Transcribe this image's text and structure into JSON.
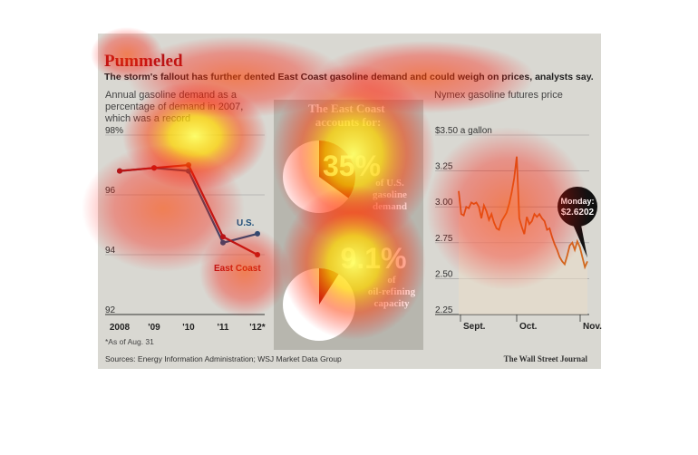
{
  "header": {
    "title": "Pummeled",
    "subtitle": "The storm's fallout has further dented East Coast gasoline demand and could weigh on prices, analysts say."
  },
  "footer": {
    "sources": "Sources: Energy Information Administration; WSJ Market Data Group",
    "credit": "The Wall Street Journal"
  },
  "colors": {
    "us": "#1f4f7a",
    "east_coast": "#a8161a",
    "futures": "#d2691e",
    "panel": "#b7b6ae",
    "pie_base": "#ffffff"
  },
  "chart_data": [
    {
      "type": "line",
      "title": "Annual gasoline demand as a percentage of demand in 2007, which was a record",
      "x": [
        "2008",
        "'09",
        "'10",
        "'11",
        "'12*"
      ],
      "ylim": [
        92,
        98
      ],
      "yticks": [
        "98%",
        "96",
        "94",
        "92"
      ],
      "series": [
        {
          "name": "U.S.",
          "values": [
            96.8,
            96.9,
            96.8,
            94.4,
            94.7
          ]
        },
        {
          "name": "East Coast",
          "values": [
            96.8,
            96.9,
            97.0,
            94.6,
            94.0
          ]
        }
      ],
      "footnote": "*As of Aug. 31",
      "grid": true
    },
    {
      "type": "pie",
      "title": "The East Coast accounts for:",
      "slices": [
        {
          "value_label": "35%",
          "caption": "of U.S. gasoline demand",
          "value": 35
        },
        {
          "value_label": "9.1%",
          "caption": "of oil-refining capacity",
          "value": 9.1
        }
      ]
    },
    {
      "type": "line",
      "title": "Nymex gasoline futures price",
      "yticks": [
        "$3.50 a gallon",
        "3.25",
        "3.00",
        "2.75",
        "2.50",
        "2.25"
      ],
      "ylim": [
        2.25,
        3.5
      ],
      "x_labels": [
        "Sept.",
        "Oct.",
        "Nov."
      ],
      "annotation": {
        "label": "Monday:",
        "value": "$2.6202"
      },
      "series": [
        {
          "values": [
            3.11,
            2.95,
            2.94,
            3.0,
            2.99,
            3.03,
            3.02,
            3.03,
            3.0,
            2.92,
            3.01,
            2.97,
            2.91,
            2.95,
            2.89,
            2.85,
            2.84,
            2.9,
            2.93,
            2.96,
            3.02,
            3.1,
            3.2,
            3.35,
            2.92,
            2.86,
            2.81,
            2.93,
            2.88,
            2.9,
            2.95,
            2.93,
            2.95,
            2.92,
            2.9,
            2.84,
            2.85,
            2.79,
            2.74,
            2.7,
            2.65,
            2.62,
            2.6,
            2.66,
            2.73,
            2.75,
            2.7,
            2.76,
            2.72,
            2.65,
            2.58,
            2.62
          ]
        }
      ],
      "grid": true
    }
  ]
}
